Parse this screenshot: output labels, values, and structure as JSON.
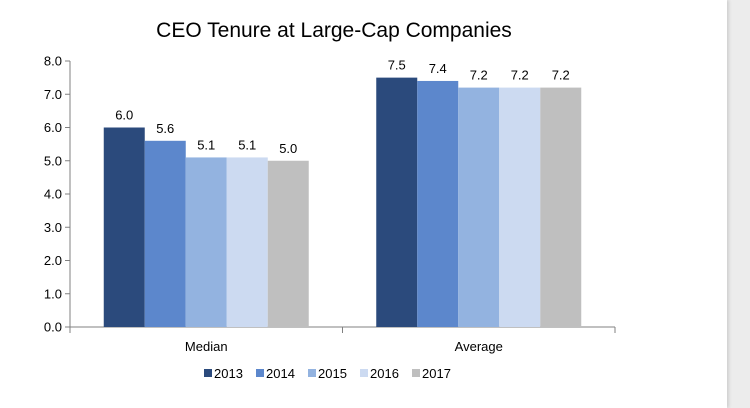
{
  "chart_data": {
    "type": "bar",
    "title": "CEO Tenure at Large-Cap Companies",
    "xlabel": "",
    "ylabel": "",
    "categories": [
      "Median",
      "Average"
    ],
    "series": [
      {
        "name": "2013",
        "values": [
          6.0,
          7.5
        ],
        "color": "#2b4a7c"
      },
      {
        "name": "2014",
        "values": [
          5.6,
          7.4
        ],
        "color": "#5c87cc"
      },
      {
        "name": "2015",
        "values": [
          5.1,
          7.2
        ],
        "color": "#93b3e0"
      },
      {
        "name": "2016",
        "values": [
          5.1,
          7.2
        ],
        "color": "#ccdaf1"
      },
      {
        "name": "2017",
        "values": [
          5.0,
          7.2
        ],
        "color": "#bfbfbf"
      }
    ],
    "data_labels": [
      [
        "6.0",
        "7.5"
      ],
      [
        "5.6",
        "7.4"
      ],
      [
        "5.1",
        "7.2"
      ],
      [
        "5.1",
        "7.2"
      ],
      [
        "5.0",
        "7.2"
      ]
    ],
    "ylim": [
      0,
      8
    ],
    "yticks": [
      "0.0",
      "1.0",
      "2.0",
      "3.0",
      "4.0",
      "5.0",
      "6.0",
      "7.0",
      "8.0"
    ],
    "grid": false,
    "legend_position": "bottom"
  }
}
